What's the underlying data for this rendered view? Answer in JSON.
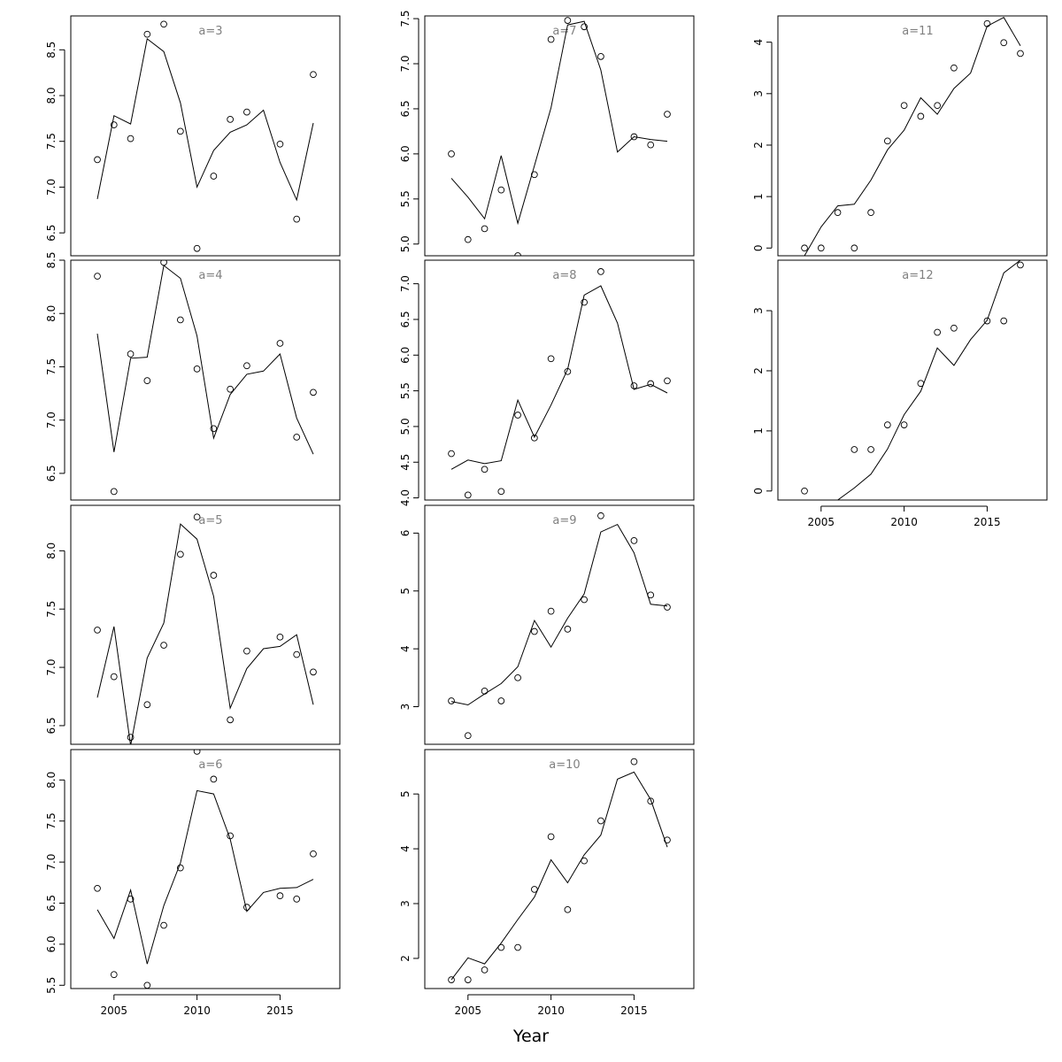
{
  "figure": {
    "xlabel": "Year"
  },
  "chart_data": [
    {
      "type": "line",
      "title": "a=3",
      "yticks": [
        6.5,
        7.0,
        7.5,
        8.0,
        8.5
      ],
      "ylim": [
        6.25,
        8.87
      ],
      "xlim": [
        2002.4,
        2018.6
      ],
      "xticks": [],
      "x": [
        2004,
        2005,
        2006,
        2007,
        2008,
        2009,
        2010,
        2011,
        2012,
        2013,
        2014,
        2015,
        2016,
        2017
      ],
      "series": [
        {
          "kind": "observed",
          "values": [
            7.3,
            7.68,
            7.53,
            8.67,
            8.78,
            7.61,
            6.33,
            7.12,
            7.74,
            7.82,
            null,
            7.47,
            6.65,
            8.23
          ]
        },
        {
          "kind": "fitted",
          "values": [
            6.87,
            7.78,
            7.69,
            8.62,
            8.48,
            7.92,
            7.0,
            7.4,
            7.6,
            7.68,
            7.84,
            7.27,
            6.86,
            7.7
          ]
        }
      ]
    },
    {
      "type": "line",
      "title": "a=4",
      "yticks": [
        6.5,
        7.0,
        7.5,
        8.0,
        8.5
      ],
      "ylim": [
        6.25,
        8.5
      ],
      "xlim": [
        2002.4,
        2018.6
      ],
      "xticks": [],
      "x": [
        2004,
        2005,
        2006,
        2007,
        2008,
        2009,
        2010,
        2011,
        2012,
        2013,
        2014,
        2015,
        2016,
        2017
      ],
      "series": [
        {
          "kind": "observed",
          "values": [
            8.35,
            6.33,
            7.62,
            7.37,
            8.48,
            7.94,
            7.48,
            6.92,
            7.29,
            7.51,
            null,
            7.72,
            6.84,
            7.26
          ]
        },
        {
          "kind": "fitted",
          "values": [
            7.81,
            6.7,
            7.58,
            7.59,
            8.45,
            8.33,
            7.79,
            6.83,
            7.24,
            7.43,
            7.46,
            7.62,
            7.02,
            6.68
          ]
        }
      ]
    },
    {
      "type": "line",
      "title": "a=5",
      "yticks": [
        6.5,
        7.0,
        7.5,
        8.0
      ],
      "ylim": [
        6.34,
        8.39
      ],
      "xlim": [
        2002.4,
        2018.6
      ],
      "xticks": [],
      "x": [
        2004,
        2005,
        2006,
        2007,
        2008,
        2009,
        2010,
        2011,
        2012,
        2013,
        2014,
        2015,
        2016,
        2017
      ],
      "series": [
        {
          "kind": "observed",
          "values": [
            7.32,
            6.92,
            6.4,
            6.68,
            7.19,
            7.97,
            8.29,
            7.79,
            6.55,
            7.14,
            null,
            7.26,
            7.11,
            6.96
          ]
        },
        {
          "kind": "fitted",
          "values": [
            6.74,
            7.35,
            6.33,
            7.08,
            7.38,
            8.23,
            8.1,
            7.61,
            6.65,
            6.99,
            7.16,
            7.18,
            7.28,
            6.68
          ]
        }
      ]
    },
    {
      "type": "line",
      "title": "a=6",
      "yticks": [
        5.5,
        6.0,
        6.5,
        7.0,
        7.5,
        8.0
      ],
      "ylim": [
        5.46,
        8.37
      ],
      "xlim": [
        2002.4,
        2018.6
      ],
      "xticks": [
        2005,
        2010,
        2015
      ],
      "x": [
        2004,
        2005,
        2006,
        2007,
        2008,
        2009,
        2010,
        2011,
        2012,
        2013,
        2014,
        2015,
        2016,
        2017
      ],
      "series": [
        {
          "kind": "observed",
          "values": [
            6.68,
            5.63,
            6.55,
            5.5,
            6.23,
            6.93,
            8.35,
            8.01,
            7.32,
            6.45,
            null,
            6.59,
            6.55,
            7.1
          ]
        },
        {
          "kind": "fitted",
          "values": [
            6.42,
            6.07,
            6.66,
            5.76,
            6.47,
            6.99,
            7.87,
            7.83,
            7.28,
            6.4,
            6.63,
            6.68,
            6.69,
            6.79
          ]
        }
      ]
    },
    {
      "type": "line",
      "title": "a=7",
      "yticks": [
        5.0,
        5.5,
        6.0,
        6.5,
        7.0,
        7.5
      ],
      "ylim": [
        4.87,
        7.53
      ],
      "xlim": [
        2002.4,
        2018.6
      ],
      "xticks": [],
      "x": [
        2004,
        2005,
        2006,
        2007,
        2008,
        2009,
        2010,
        2011,
        2012,
        2013,
        2014,
        2015,
        2016,
        2017
      ],
      "series": [
        {
          "kind": "observed",
          "values": [
            6.0,
            5.05,
            5.17,
            5.6,
            4.87,
            5.77,
            7.27,
            7.48,
            7.41,
            7.08,
            null,
            6.19,
            6.1,
            6.44
          ]
        },
        {
          "kind": "fitted",
          "values": [
            5.73,
            5.52,
            5.28,
            5.98,
            5.23,
            5.87,
            6.51,
            7.43,
            7.47,
            6.93,
            6.02,
            6.19,
            6.16,
            6.14
          ]
        }
      ]
    },
    {
      "type": "line",
      "title": "a=8",
      "yticks": [
        4.0,
        4.5,
        5.0,
        5.5,
        6.0,
        6.5,
        7.0
      ],
      "ylim": [
        3.97,
        7.33
      ],
      "xlim": [
        2002.4,
        2018.6
      ],
      "xticks": [],
      "x": [
        2004,
        2005,
        2006,
        2007,
        2008,
        2009,
        2010,
        2011,
        2012,
        2013,
        2014,
        2015,
        2016,
        2017
      ],
      "series": [
        {
          "kind": "observed",
          "values": [
            4.62,
            4.04,
            4.4,
            4.09,
            5.16,
            4.84,
            5.95,
            5.77,
            6.74,
            7.17,
            null,
            5.57,
            5.6,
            5.64
          ]
        },
        {
          "kind": "fitted",
          "values": [
            4.4,
            4.53,
            4.48,
            4.52,
            5.37,
            4.85,
            5.3,
            5.8,
            6.84,
            6.97,
            6.45,
            5.52,
            5.59,
            5.47
          ]
        }
      ]
    },
    {
      "type": "line",
      "title": "a=9",
      "yticks": [
        3,
        4,
        5,
        6
      ],
      "ylim": [
        2.35,
        6.48
      ],
      "xlim": [
        2002.4,
        2018.6
      ],
      "xticks": [],
      "x": [
        2004,
        2005,
        2006,
        2007,
        2008,
        2009,
        2010,
        2011,
        2012,
        2013,
        2014,
        2015,
        2016,
        2017
      ],
      "series": [
        {
          "kind": "observed",
          "values": [
            3.1,
            2.5,
            3.27,
            3.1,
            3.5,
            4.3,
            4.65,
            4.34,
            4.85,
            6.3,
            null,
            5.87,
            4.93,
            4.72
          ]
        },
        {
          "kind": "fitted",
          "values": [
            3.09,
            3.03,
            3.22,
            3.4,
            3.69,
            4.49,
            4.03,
            4.53,
            4.95,
            6.02,
            6.15,
            5.66,
            4.77,
            4.74
          ]
        }
      ]
    },
    {
      "type": "line",
      "title": "a=10",
      "yticks": [
        2,
        3,
        4,
        5
      ],
      "ylim": [
        1.45,
        5.81
      ],
      "xlim": [
        2002.4,
        2018.6
      ],
      "xticks": [
        2005,
        2010,
        2015
      ],
      "x": [
        2004,
        2005,
        2006,
        2007,
        2008,
        2009,
        2010,
        2011,
        2012,
        2013,
        2014,
        2015,
        2016,
        2017
      ],
      "series": [
        {
          "kind": "observed",
          "values": [
            1.61,
            1.61,
            1.79,
            2.2,
            2.2,
            3.26,
            4.22,
            2.89,
            3.78,
            4.51,
            null,
            5.59,
            4.87,
            4.16
          ]
        },
        {
          "kind": "fitted",
          "values": [
            1.61,
            2.01,
            1.9,
            2.28,
            2.71,
            3.12,
            3.8,
            3.38,
            3.89,
            4.25,
            5.27,
            5.4,
            4.9,
            4.03
          ]
        }
      ]
    },
    {
      "type": "line",
      "title": "a=11",
      "yticks": [
        0,
        1,
        2,
        3,
        4
      ],
      "ylim": [
        -0.15,
        4.51
      ],
      "xlim": [
        2002.4,
        2018.6
      ],
      "xticks": [],
      "x": [
        2004,
        2005,
        2006,
        2007,
        2008,
        2009,
        2010,
        2011,
        2012,
        2013,
        2014,
        2015,
        2016,
        2017
      ],
      "series": [
        {
          "kind": "observed",
          "values": [
            0.0,
            0.0,
            0.69,
            0.0,
            0.69,
            2.08,
            2.77,
            2.56,
            2.77,
            3.5,
            null,
            4.36,
            3.99,
            3.78
          ]
        },
        {
          "kind": "fitted",
          "values": [
            -0.15,
            0.41,
            0.82,
            0.85,
            1.32,
            1.91,
            2.29,
            2.92,
            2.6,
            3.1,
            3.4,
            4.31,
            4.48,
            3.93
          ]
        }
      ]
    },
    {
      "type": "line",
      "title": "a=12",
      "yticks": [
        0,
        1,
        2,
        3
      ],
      "ylim": [
        -0.15,
        3.84
      ],
      "xlim": [
        2002.4,
        2018.6
      ],
      "xticks": [
        2005,
        2010,
        2015
      ],
      "x": [
        2004,
        2005,
        2006,
        2007,
        2008,
        2009,
        2010,
        2011,
        2012,
        2013,
        2014,
        2015,
        2016,
        2017
      ],
      "series": [
        {
          "kind": "observed",
          "values": [
            0.0,
            null,
            null,
            0.69,
            0.69,
            1.1,
            1.1,
            1.79,
            2.64,
            2.71,
            null,
            2.83,
            2.83,
            3.76
          ]
        },
        {
          "kind": "fitted",
          "values": [
            null,
            null,
            -0.15,
            0.05,
            0.28,
            0.7,
            1.27,
            1.66,
            2.38,
            2.09,
            2.52,
            2.84,
            3.63,
            3.84
          ]
        }
      ]
    }
  ]
}
